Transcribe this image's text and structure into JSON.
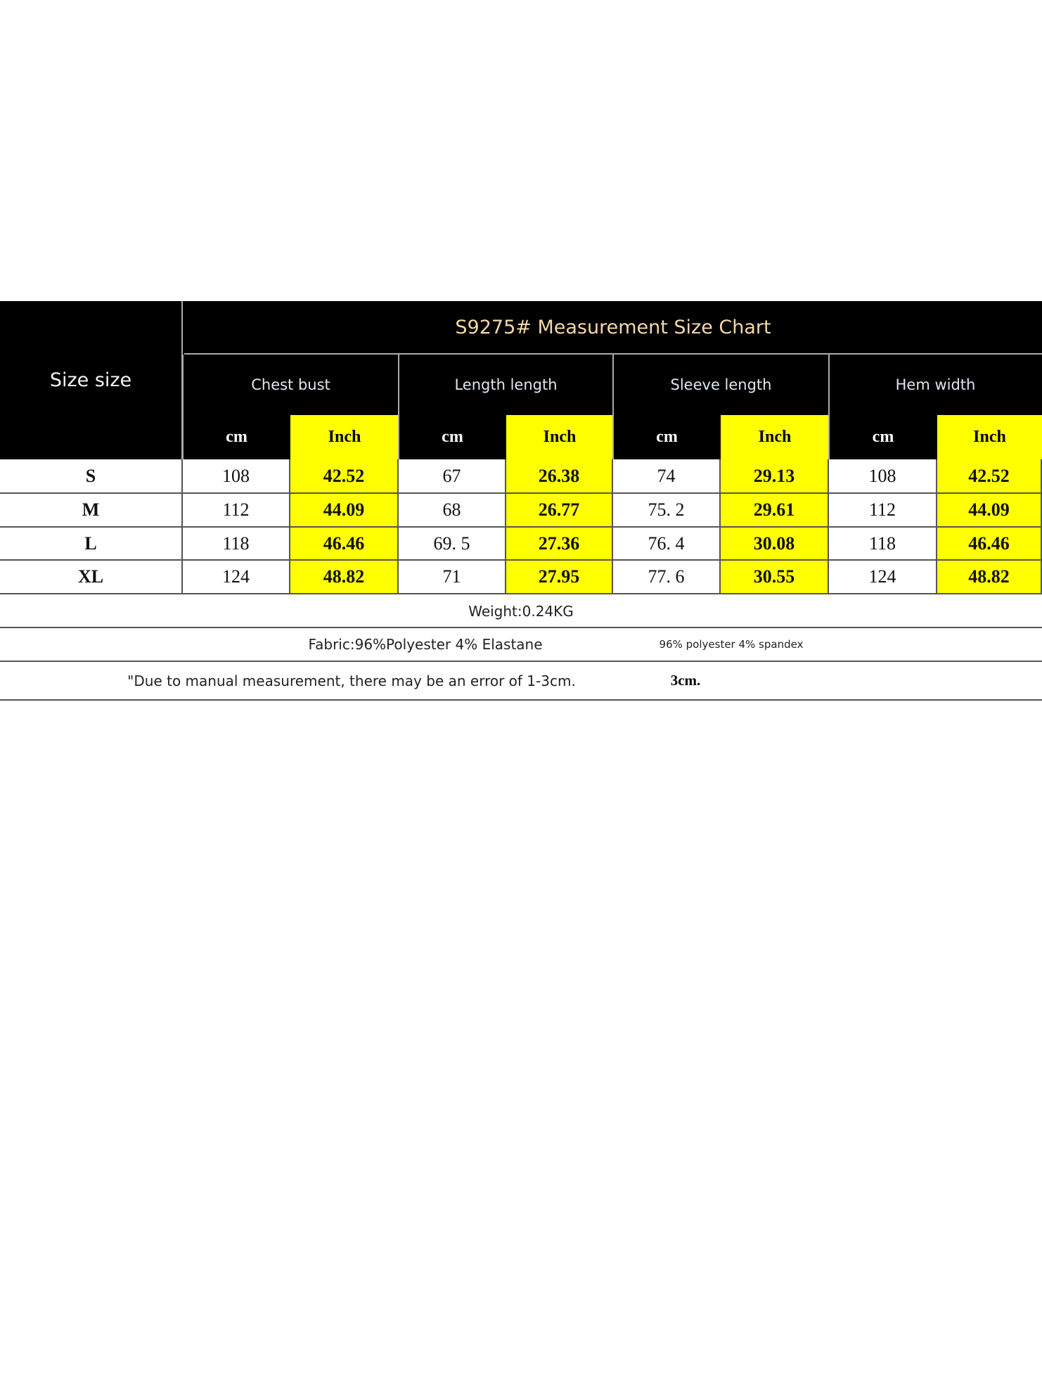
{
  "title": "S9275# Measurement Size Chart",
  "size_header": "Size size",
  "measures": [
    "Chest bust",
    "Length length",
    "Sleeve length",
    "Hem width"
  ],
  "units": {
    "cm": "cm",
    "inch": "Inch"
  },
  "rows": [
    {
      "size": "S",
      "values": [
        "108",
        "42.52",
        "67",
        "26.38",
        "74",
        "29.13",
        "108",
        "42.52"
      ]
    },
    {
      "size": "M",
      "values": [
        "112",
        "44.09",
        "68",
        "26.77",
        "75. 2",
        "29.61",
        "112",
        "44.09"
      ]
    },
    {
      "size": "L",
      "values": [
        "118",
        "46.46",
        "69. 5",
        "27.36",
        "76. 4",
        "30.08",
        "118",
        "46.46"
      ]
    },
    {
      "size": "XL",
      "values": [
        "124",
        "48.82",
        "71",
        "27.95",
        "77. 6",
        "30.55",
        "124",
        "48.82"
      ]
    }
  ],
  "weight": "Weight:0.24KG",
  "fabric": "Fabric:96%Polyester 4% Elastane",
  "fabric_alt": "96% polyester 4% spandex",
  "note": "\"Due to manual measurement, there may be an error of 1-3cm.",
  "note_alt": "3cm.",
  "colors": {
    "header_bg": "#000000",
    "inch_bg": "#ffff00",
    "title": "#f3d9a8"
  }
}
